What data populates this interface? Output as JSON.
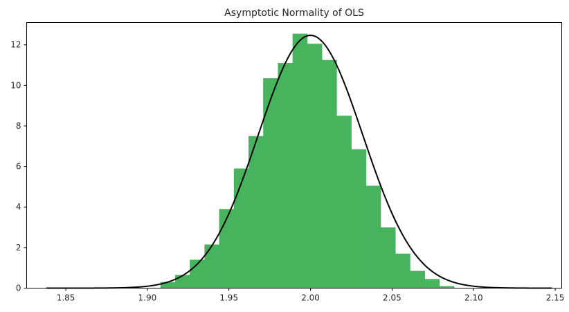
{
  "chart_data": {
    "type": "bar",
    "title": "Asymptotic Normality of OLS",
    "xlabel": "",
    "ylabel": "",
    "xlim": [
      1.826,
      2.154
    ],
    "ylim": [
      0,
      13.1
    ],
    "xticks": [
      "1.85",
      "1.90",
      "1.95",
      "2.00",
      "2.05",
      "2.10",
      "2.15"
    ],
    "yticks": [
      "0",
      "2",
      "4",
      "6",
      "8",
      "10",
      "12"
    ],
    "grid": false,
    "bar_color": "#47b35d",
    "curve_color": "#000000",
    "histogram": {
      "bins": [
        {
          "x0": 1.908,
          "x1": 1.917,
          "value": 0.3
        },
        {
          "x0": 1.917,
          "x1": 1.926,
          "value": 0.65
        },
        {
          "x0": 1.926,
          "x1": 1.935,
          "value": 1.4
        },
        {
          "x0": 1.935,
          "x1": 1.944,
          "value": 2.15
        },
        {
          "x0": 1.944,
          "x1": 1.953,
          "value": 3.9
        },
        {
          "x0": 1.953,
          "x1": 1.962,
          "value": 5.9
        },
        {
          "x0": 1.962,
          "x1": 1.971,
          "value": 7.5
        },
        {
          "x0": 1.971,
          "x1": 1.98,
          "value": 10.35
        },
        {
          "x0": 1.98,
          "x1": 1.989,
          "value": 11.1
        },
        {
          "x0": 1.989,
          "x1": 1.998,
          "value": 12.55
        },
        {
          "x0": 1.998,
          "x1": 2.007,
          "value": 12.05
        },
        {
          "x0": 2.007,
          "x1": 2.016,
          "value": 11.25
        },
        {
          "x0": 2.016,
          "x1": 2.025,
          "value": 8.5
        },
        {
          "x0": 2.025,
          "x1": 2.034,
          "value": 6.85
        },
        {
          "x0": 2.034,
          "x1": 2.043,
          "value": 5.05
        },
        {
          "x0": 2.043,
          "x1": 2.052,
          "value": 3.0
        },
        {
          "x0": 2.052,
          "x1": 2.061,
          "value": 1.7
        },
        {
          "x0": 2.061,
          "x1": 2.07,
          "value": 0.85
        },
        {
          "x0": 2.07,
          "x1": 2.079,
          "value": 0.45
        },
        {
          "x0": 2.079,
          "x1": 2.088,
          "value": 0.1
        }
      ]
    },
    "normal_curve": {
      "mean": 2.0,
      "sd": 0.032,
      "x_range": [
        1.838,
        2.148
      ]
    }
  }
}
